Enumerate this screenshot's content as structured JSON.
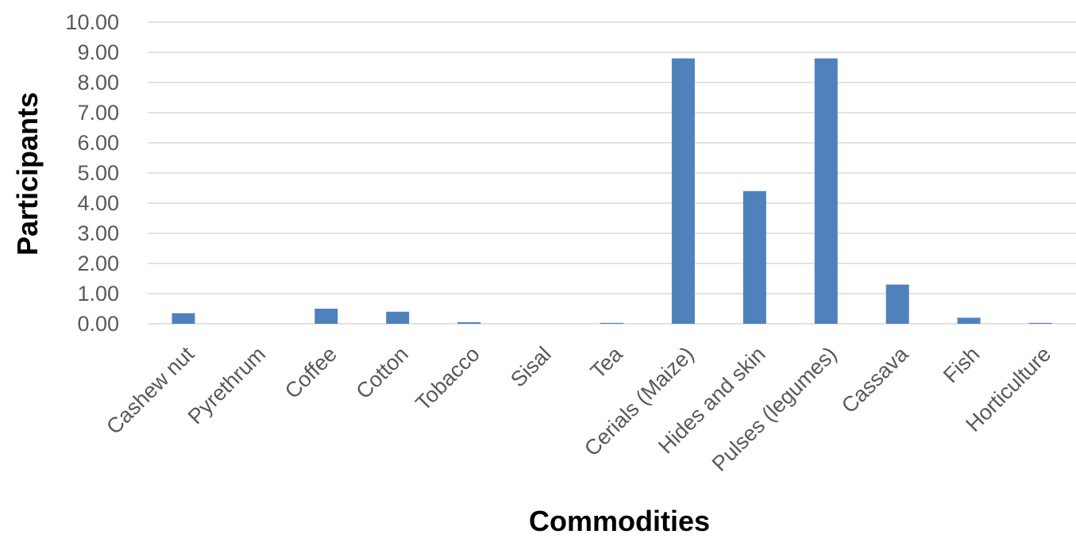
{
  "chart_data": {
    "type": "bar",
    "title": "",
    "xlabel": "Commodities",
    "ylabel": "Participants",
    "categories": [
      "Cashew nut",
      "Pyrethrum",
      "Coffee",
      "Cotton",
      "Tobacco",
      "Sisal",
      "Tea",
      "Cerials (Maize)",
      "Hides and skin",
      "Pulses (legumes)",
      "Cassava",
      "Fish",
      "Horticulture"
    ],
    "values": [
      0.35,
      0.0,
      0.5,
      0.4,
      0.05,
      0.0,
      0.03,
      8.8,
      4.4,
      8.8,
      1.3,
      0.2,
      0.03
    ],
    "ylim": [
      0,
      10
    ],
    "yticks": [
      "0.00",
      "1.00",
      "2.00",
      "3.00",
      "4.00",
      "5.00",
      "6.00",
      "7.00",
      "8.00",
      "9.00",
      "10.00"
    ],
    "grid": true,
    "legend": "none",
    "bar_color": "#4f81bd"
  }
}
